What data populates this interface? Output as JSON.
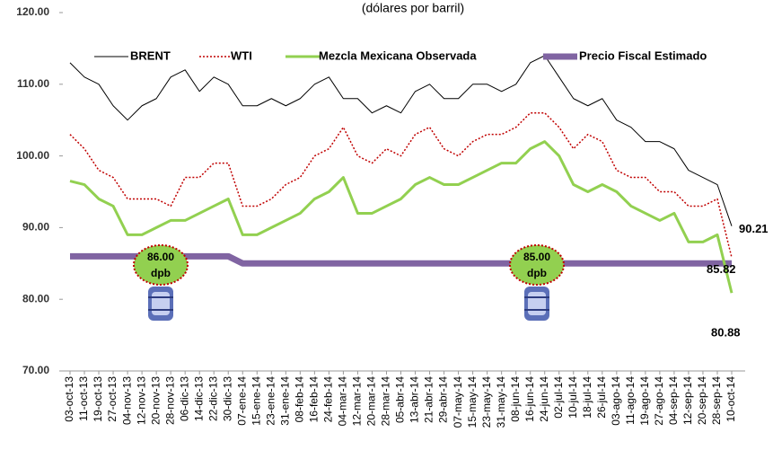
{
  "chart_data": {
    "type": "line",
    "title": "(dólares por barril)",
    "categories": [
      "03-oct-13",
      "11-oct-13",
      "19-oct-13",
      "27-oct-13",
      "04-nov-13",
      "12-nov-13",
      "20-nov-13",
      "28-nov-13",
      "06-dic-13",
      "14-dic-13",
      "22-dic-13",
      "30-dic-13",
      "07-ene-14",
      "15-ene-14",
      "23-ene-14",
      "31-ene-14",
      "08-feb-14",
      "16-feb-14",
      "24-feb-14",
      "04-mar-14",
      "12-mar-14",
      "20-mar-14",
      "28-mar-14",
      "05-abr-14",
      "13-abr-14",
      "21-abr-14",
      "29-abr-14",
      "07-may-14",
      "15-may-14",
      "23-may-14",
      "31-may-14",
      "08-jun-14",
      "16-jun-14",
      "24-jun-14",
      "02-jul-14",
      "10-jul-14",
      "18-jul-14",
      "26-jul-14",
      "03-ago-14",
      "11-ago-14",
      "19-ago-14",
      "27-ago-14",
      "04-sep-14",
      "12-sep-14",
      "20-sep-14",
      "28-sep-14",
      "10-oct-14"
    ],
    "series": [
      {
        "name": "BRENT",
        "color": "#000000",
        "style": "solid",
        "width": 1,
        "values": [
          113,
          111,
          110,
          107,
          105,
          107,
          108,
          111,
          112,
          109,
          111,
          110,
          107,
          107,
          108,
          107,
          108,
          110,
          111,
          108,
          108,
          106,
          107,
          106,
          109,
          110,
          108,
          108,
          110,
          110,
          109,
          110,
          113,
          114,
          111,
          108,
          107,
          108,
          105,
          104,
          102,
          102,
          101,
          98,
          97,
          96,
          90.21
        ]
      },
      {
        "name": "WTI",
        "color": "#c00000",
        "style": "dotted",
        "width": 1.5,
        "values": [
          103,
          101,
          98,
          97,
          94,
          94,
          94,
          93,
          97,
          97,
          99,
          99,
          93,
          93,
          94,
          96,
          97,
          100,
          101,
          104,
          100,
          99,
          101,
          100,
          103,
          104,
          101,
          100,
          102,
          103,
          103,
          104,
          106,
          106,
          104,
          101,
          103,
          102,
          98,
          97,
          97,
          95,
          95,
          93,
          93,
          94,
          85.82
        ]
      },
      {
        "name": "Mezcla Mexicana Observada",
        "color": "#92d050",
        "style": "solid",
        "width": 3,
        "values": [
          96.5,
          96,
          94,
          93,
          89,
          89,
          90,
          91,
          91,
          92,
          93,
          94,
          89,
          89,
          90,
          91,
          92,
          94,
          95,
          97,
          92,
          92,
          93,
          94,
          96,
          97,
          96,
          96,
          97,
          98,
          99,
          99,
          101,
          102,
          100,
          96,
          95,
          96,
          95,
          93,
          92,
          91,
          92,
          88,
          88,
          89,
          80.88
        ]
      },
      {
        "name": "Precio Fiscal Estimado",
        "color": "#8064a2",
        "style": "solid",
        "width": 7,
        "values": [
          86,
          86,
          86,
          86,
          86,
          86,
          86,
          86,
          86,
          86,
          86,
          86,
          85,
          85,
          85,
          85,
          85,
          85,
          85,
          85,
          85,
          85,
          85,
          85,
          85,
          85,
          85,
          85,
          85,
          85,
          85,
          85,
          85,
          85,
          85,
          85,
          85,
          85,
          85,
          85,
          85,
          85,
          85,
          85,
          85,
          85,
          85
        ]
      }
    ],
    "ylim": [
      70,
      120
    ],
    "yticks": [
      {
        "value": 70,
        "label": "70.00"
      },
      {
        "value": 80,
        "label": "80.00"
      },
      {
        "value": 90,
        "label": "90.00"
      },
      {
        "value": 100,
        "label": "100.00"
      },
      {
        "value": 110,
        "label": "110.00"
      },
      {
        "value": 120,
        "label": "120.00"
      }
    ],
    "legend": "top",
    "annotations": [
      {
        "lines": [
          "86.00",
          "dpb"
        ]
      },
      {
        "lines": [
          "85.00",
          "dpb"
        ]
      }
    ]
  }
}
